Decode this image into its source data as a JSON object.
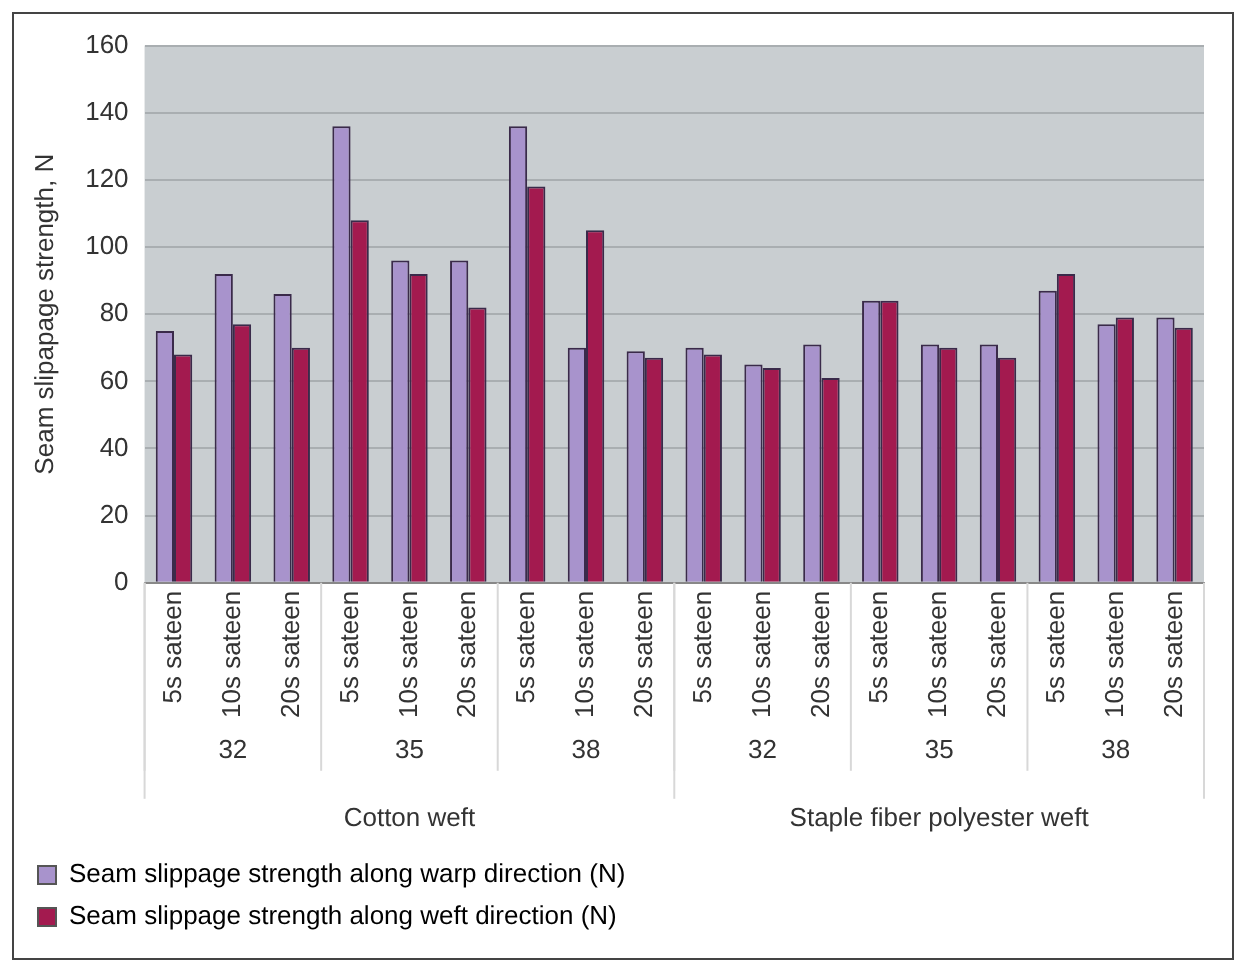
{
  "chart_data": {
    "type": "bar",
    "ylabel": "Seam slipapage strength, N",
    "categories": [
      "5s sateen",
      "10s sateen",
      "20s sateen",
      "5s sateen",
      "10s sateen",
      "20s sateen",
      "5s sateen",
      "10s sateen",
      "20s sateen",
      "5s sateen",
      "10s sateen",
      "20s sateen",
      "5s sateen",
      "10s sateen",
      "20s sateen",
      "5s sateen",
      "10s sateen",
      "20s sateen"
    ],
    "series": [
      {
        "name": "Seam slippage strength along warp direction (N)",
        "color": "#a893cc",
        "values": [
          75,
          92,
          86,
          136,
          96,
          96,
          136,
          70,
          69,
          70,
          65,
          71,
          84,
          71,
          71,
          87,
          77,
          79
        ]
      },
      {
        "name": "Seam slippage strength along weft direction (N)",
        "color": "#a31a4f",
        "values": [
          68,
          77,
          70,
          108,
          92,
          82,
          118,
          105,
          67,
          68,
          64,
          61,
          84,
          70,
          67,
          92,
          79,
          76
        ]
      }
    ],
    "annotations": [
      "32",
      "35",
      "38",
      "32",
      "35",
      "38",
      "Cotton weft",
      "Staple fiber polyester weft"
    ],
    "ylim": [
      0,
      160
    ],
    "yticks": [
      0,
      20,
      40,
      60,
      80,
      100,
      120,
      140,
      160
    ],
    "grid": "y",
    "legend": "bottom"
  }
}
